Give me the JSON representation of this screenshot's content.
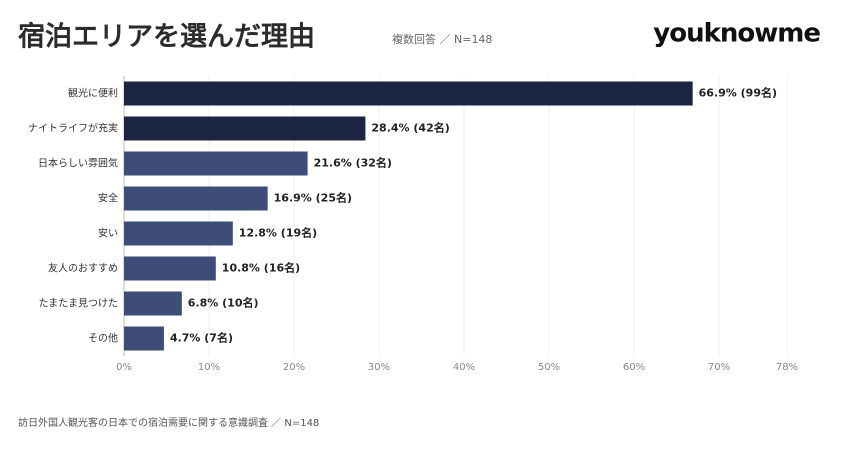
{
  "chart_data": {
    "type": "barh",
    "title": "宿泊エリアを選んだ理由",
    "subtitle": "複数回答 ／ N=148",
    "logo": "youknowme",
    "footnote": "訪日外国人観光客の日本での宿泊需要に関する意識調査 ／ N=148",
    "categories": [
      "観光に便利",
      "ナイトライフが充実",
      "日本らしい雰囲気",
      "安全",
      "安い",
      "友人のおすすめ",
      "たまたま見つけた",
      "その他"
    ],
    "values": [
      66.9,
      28.4,
      21.6,
      16.9,
      12.8,
      10.8,
      6.8,
      4.7
    ],
    "value_labels": [
      "66.9% (99名)",
      "28.4% (42名)",
      "21.6% (32名)",
      "16.9% (25名)",
      "12.8% (19名)",
      "10.8% (16名)",
      "6.8% (10名)",
      "4.7% (7名)"
    ],
    "colors": [
      "#1b2440",
      "#1b2440",
      "#3d4d78",
      "#3d4d78",
      "#3d4d78",
      "#3d4d78",
      "#3d4d78",
      "#3d4d78"
    ],
    "xlim": [
      0,
      78
    ],
    "xticks": [
      {
        "value": 0,
        "label": "0%"
      },
      {
        "value": 10,
        "label": "10%"
      },
      {
        "value": 20,
        "label": "20%"
      },
      {
        "value": 30,
        "label": "30%"
      },
      {
        "value": 40,
        "label": "40%"
      },
      {
        "value": 50,
        "label": "50%"
      },
      {
        "value": 60,
        "label": "60%"
      },
      {
        "value": 70,
        "label": "70%"
      },
      {
        "value": 78,
        "label": "78%"
      }
    ],
    "grid": true
  }
}
